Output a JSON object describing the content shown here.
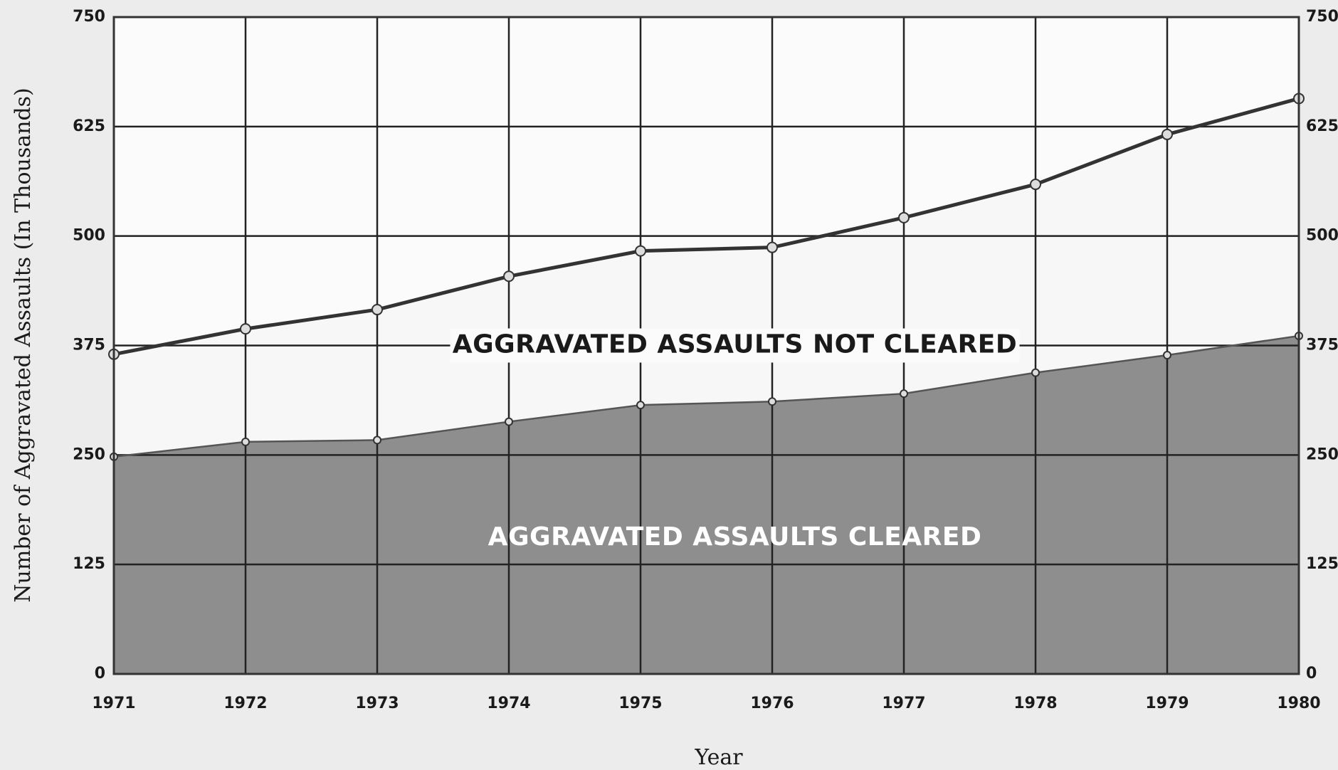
{
  "chart_data": {
    "type": "stacked_area",
    "x": [
      1971,
      1972,
      1973,
      1974,
      1975,
      1976,
      1977,
      1978,
      1979,
      1980
    ],
    "xlim": [
      1971,
      1980
    ],
    "xticks": [
      1971,
      1972,
      1973,
      1974,
      1975,
      1976,
      1977,
      1978,
      1979,
      1980
    ],
    "ylim": [
      0,
      750
    ],
    "yticks": [
      0,
      125,
      250,
      375,
      500,
      625,
      750
    ],
    "y2lim": [
      0,
      750
    ],
    "y2ticks": [
      0,
      125,
      250,
      375,
      500,
      625,
      750
    ],
    "grid": true,
    "series": [
      {
        "name": "AGGRAVATED ASSAULTS CLEARED",
        "color": "#8e8e8e",
        "values": [
          248,
          265,
          267,
          288,
          307,
          311,
          320,
          344,
          364,
          386
        ]
      },
      {
        "name": "AGGRAVATED ASSAULTS NOT CLEARED",
        "color": "#f7f7f7",
        "values": [
          117,
          129,
          149,
          166,
          176,
          176,
          201,
          215,
          252,
          271
        ]
      }
    ],
    "xlabel": "Year",
    "ylabel": "Number of Aggravated Assaults (In Thousands)"
  }
}
